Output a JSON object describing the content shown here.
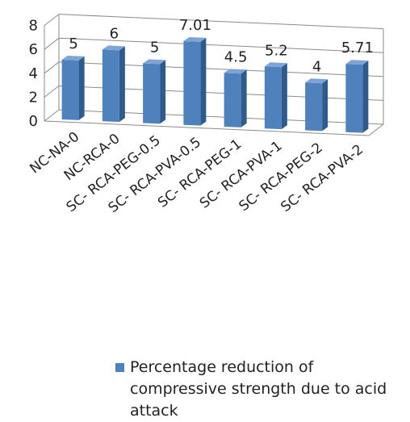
{
  "chart_data": {
    "type": "bar",
    "style": "3d-column",
    "categories": [
      "NC-NA-0",
      "NC-RCA-0",
      "SC- RCA-PEG-0.5",
      "SC- RCA-PVA-0.5",
      "SC- RCA-PEG-1",
      "SC- RCA-PVA-1",
      "SC- RCA-PEG-2",
      "SC- RCA-PVA-2"
    ],
    "series": [
      {
        "name": "Percentage reduction of compressive strength due to acid attack",
        "values": [
          5,
          6,
          5,
          7.01,
          4.5,
          5.2,
          4,
          5.71
        ]
      }
    ],
    "data_labels": [
      "5",
      "6",
      "5",
      "7.01",
      "4.5",
      "5.2",
      "4",
      "5.71"
    ],
    "y_ticks": [
      "0",
      "2",
      "4",
      "6",
      "8"
    ],
    "ylim": [
      0,
      8
    ],
    "grid": true,
    "legend_position": "bottom",
    "colors": {
      "bar_front": "#4F81BD",
      "bar_side": "#2E5A8C",
      "bar_top": "#7EA4D6",
      "grid": "#8a8a8a",
      "text": "#222222"
    }
  }
}
